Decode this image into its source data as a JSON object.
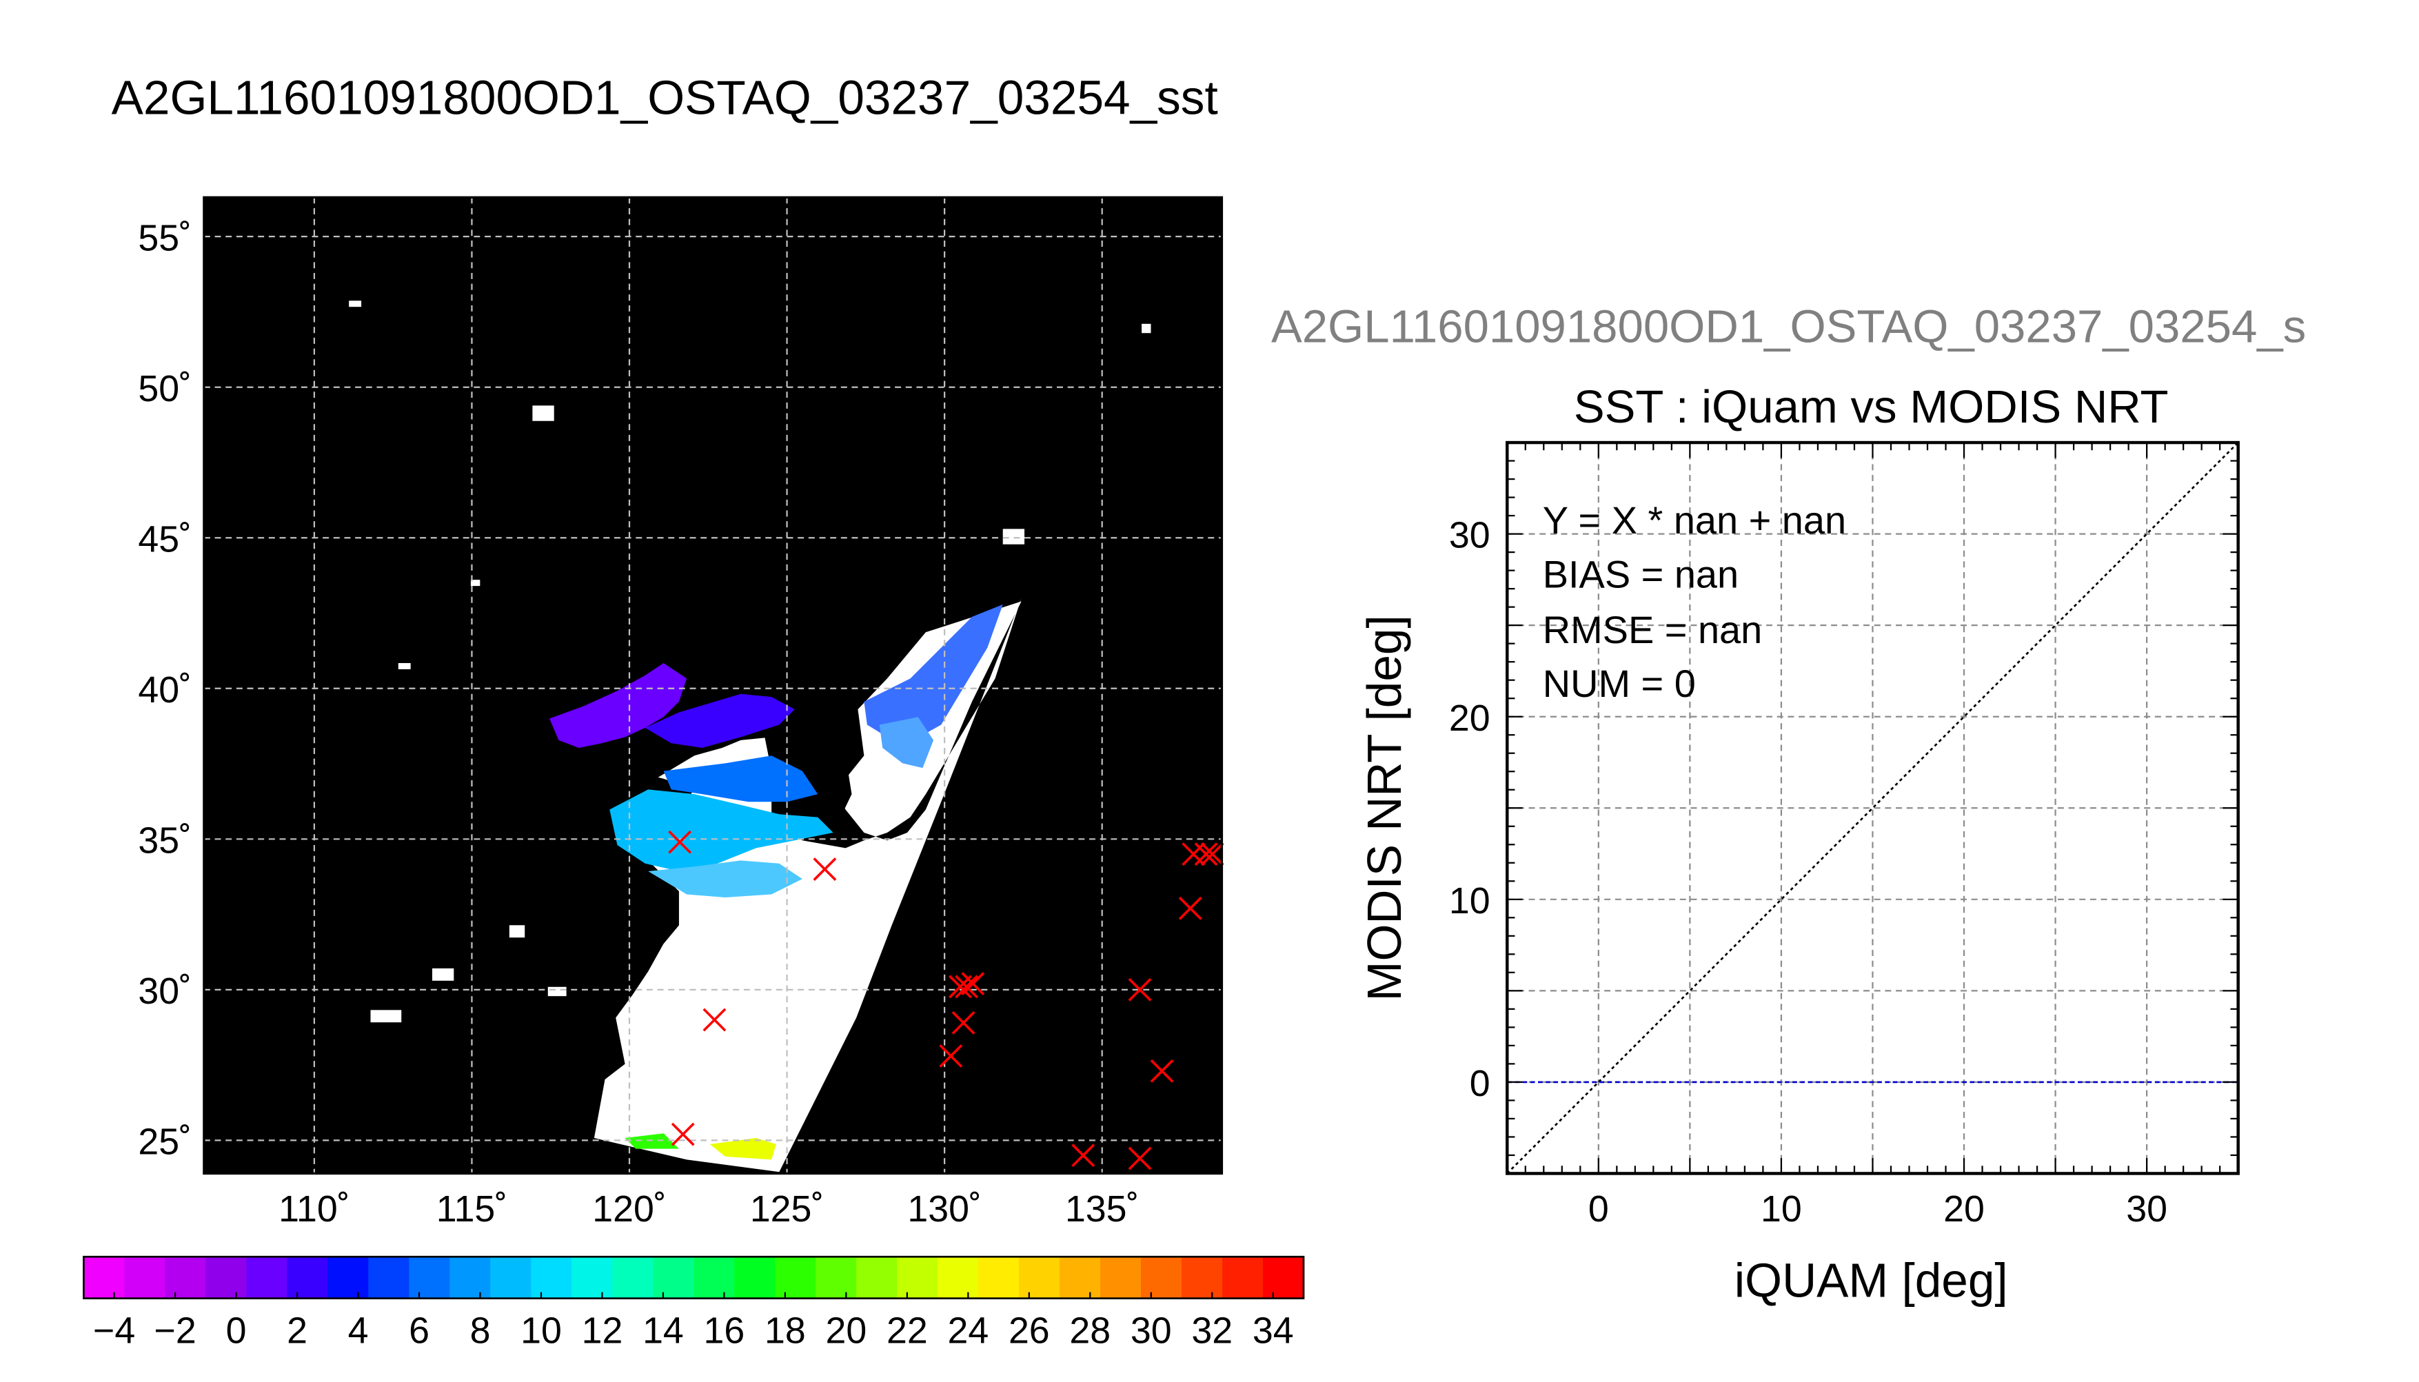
{
  "main_title": "A2GL11601091800OD1_OSTAQ_03237_03254_sst",
  "map": {
    "lon_ticks": [
      110,
      115,
      120,
      125,
      130,
      135
    ],
    "lat_ticks": [
      55,
      50,
      45,
      40,
      35,
      30,
      25
    ],
    "lon_tick_labels": [
      "110˚",
      "115˚",
      "120˚",
      "125˚",
      "130˚",
      "135˚"
    ],
    "lat_tick_labels": [
      "55˚",
      "50˚",
      "45˚",
      "40˚",
      "35˚",
      "30˚",
      "25˚"
    ],
    "lon_range": [
      106.5,
      138.8
    ],
    "lat_range": [
      23.9,
      56.3
    ],
    "colors": {
      "background": "#000000",
      "land_no_data": "#ffffff",
      "grid": "#bfbfbf",
      "marker": "#ff0000"
    },
    "buoy_markers_lonlat": [
      [
        121.6,
        34.9
      ],
      [
        126.2,
        34.0
      ],
      [
        122.7,
        29.0
      ],
      [
        121.7,
        25.2
      ],
      [
        130.2,
        27.8
      ],
      [
        130.6,
        28.9
      ],
      [
        130.5,
        30.1
      ],
      [
        130.9,
        30.2
      ],
      [
        130.7,
        30.1
      ],
      [
        136.2,
        30.0
      ],
      [
        137.9,
        34.5
      ],
      [
        138.3,
        34.5
      ],
      [
        138.5,
        34.5
      ],
      [
        137.8,
        32.7
      ],
      [
        136.9,
        27.3
      ],
      [
        134.4,
        24.5
      ],
      [
        136.2,
        24.4
      ]
    ]
  },
  "colorbar": {
    "tick_labels": [
      "−4",
      "−2",
      "0",
      "2",
      "4",
      "6",
      "8",
      "10",
      "12",
      "14",
      "16",
      "18",
      "20",
      "22",
      "24",
      "26",
      "28",
      "30",
      "32",
      "34"
    ],
    "range": [
      -5,
      35
    ],
    "colors": [
      "#ef00ff",
      "#d200f8",
      "#b300f0",
      "#9000ea",
      "#6a00ff",
      "#3a00ff",
      "#0010ff",
      "#0040ff",
      "#0070ff",
      "#0098ff",
      "#00bcff",
      "#00dcff",
      "#00f5e8",
      "#00ffba",
      "#00ff8a",
      "#00ff55",
      "#00ff20",
      "#2cff00",
      "#60ff00",
      "#94ff00",
      "#c4ff00",
      "#eaff00",
      "#ffec00",
      "#ffd200",
      "#ffb300",
      "#ff9000",
      "#ff6a00",
      "#ff4400",
      "#ff2000",
      "#ff0000"
    ]
  },
  "scatter": {
    "overlay_title": "A2GL11601091800OD1_OSTAQ_03237_03254_s",
    "title": "SST : iQuam vs MODIS NRT",
    "xlabel": "iQUAM [deg]",
    "ylabel": "MODIS NRT [deg]",
    "stats": {
      "line1": "Y = X * nan + nan",
      "line2": "BIAS = nan",
      "line3": "RMSE = nan",
      "line4": "NUM = 0"
    }
  },
  "chart_data": {
    "type": "scatter",
    "title": "SST : iQuam vs MODIS NRT",
    "xlabel": "iQUAM [deg]",
    "ylabel": "MODIS NRT [deg]",
    "xlim": [
      -5,
      35
    ],
    "ylim": [
      -5,
      35
    ],
    "xticks": [
      0,
      10,
      20,
      30
    ],
    "yticks": [
      0,
      10,
      20,
      30
    ],
    "grid": true,
    "series": [],
    "reference_lines": [
      {
        "kind": "identity",
        "x": [
          -5,
          35
        ],
        "y": [
          -5,
          35
        ],
        "color": "#000000",
        "style": "dotted"
      },
      {
        "kind": "horizontal",
        "x": [
          -5,
          35
        ],
        "y": [
          0,
          0
        ],
        "color": "#0000cc",
        "style": "dashed"
      }
    ]
  }
}
